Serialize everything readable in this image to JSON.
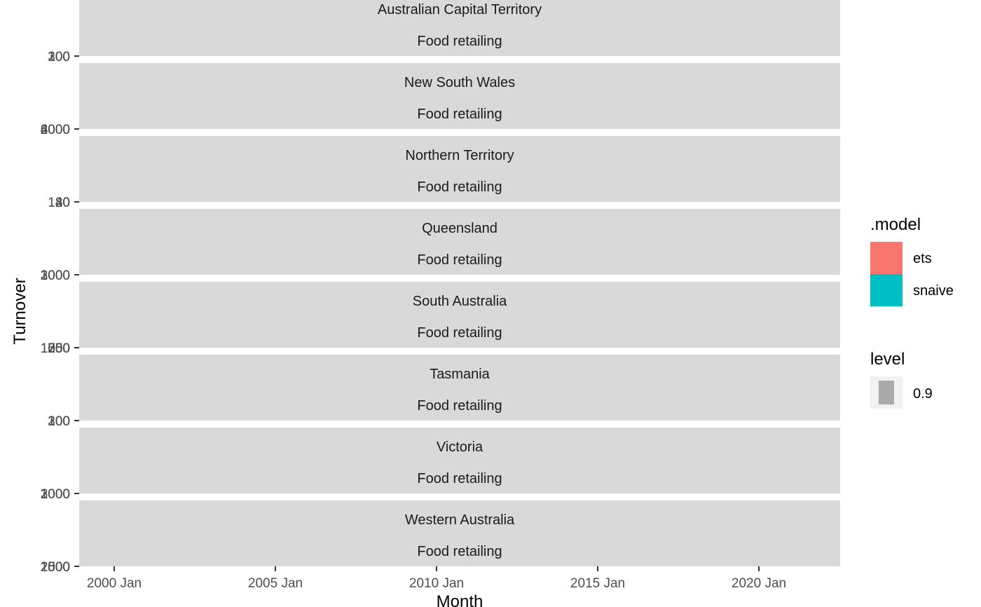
{
  "chart_data": {
    "type": "line",
    "xlabel": "Month",
    "ylabel": "Turnover",
    "x_ticks": [
      "2000 Jan",
      "2005 Jan",
      "2010 Jan",
      "2015 Jan",
      "2020 Jan"
    ],
    "facets": [
      {
        "state": "Australian Capital Territory",
        "industry": "Food retailing",
        "y_ticks": [
          "100",
          "200",
          "300"
        ]
      },
      {
        "state": "New South Wales",
        "industry": "Food retailing",
        "y_ticks": [
          "2000",
          "4000",
          "6000"
        ]
      },
      {
        "state": "Northern Territory",
        "industry": "Food retailing",
        "y_ticks": [
          "40",
          "80",
          "120"
        ]
      },
      {
        "state": "Queensland",
        "industry": "Food retailing",
        "y_ticks": [
          "1000",
          "2000",
          "3000"
        ]
      },
      {
        "state": "South Australia",
        "industry": "Food retailing",
        "y_ticks": [
          "250",
          "500",
          "750",
          "1000",
          "1250"
        ]
      },
      {
        "state": "Tasmania",
        "industry": "Food retailing",
        "y_ticks": [
          "100",
          "200",
          "300"
        ]
      },
      {
        "state": "Victoria",
        "industry": "Food retailing",
        "y_ticks": [
          "1000",
          "2000",
          "3000"
        ]
      },
      {
        "state": "Western Australia",
        "industry": "Food retailing",
        "y_ticks": [
          "500",
          "1000",
          "1500",
          "2000",
          "2500"
        ]
      }
    ],
    "legend": {
      "model": {
        "title": ".model",
        "items": [
          {
            "label": "ets",
            "color": "#F8766D"
          },
          {
            "label": "snaive",
            "color": "#00BFC4"
          }
        ]
      },
      "level": {
        "title": "level",
        "items": [
          {
            "label": "0.9",
            "color": "#aaaaaa"
          }
        ]
      }
    }
  }
}
